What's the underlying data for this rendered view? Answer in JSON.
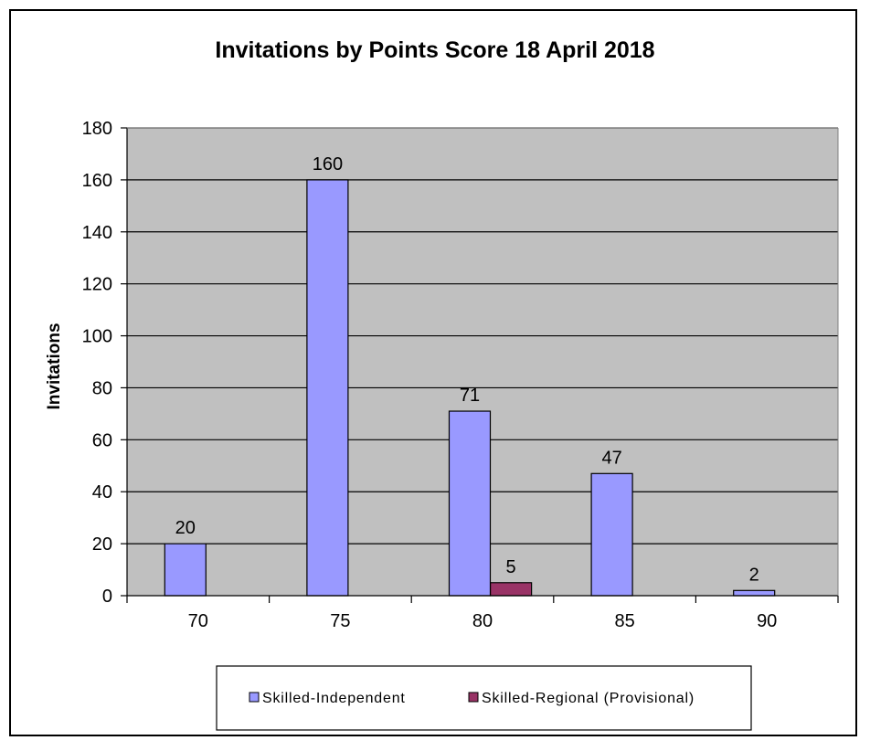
{
  "chart_data": {
    "type": "bar",
    "title": "Invitations by Points Score 18 April 2018",
    "xlabel": "",
    "ylabel": "Invitations",
    "categories": [
      "70",
      "75",
      "80",
      "85",
      "90"
    ],
    "series": [
      {
        "name": "Skilled-Independent",
        "color": "#9999ff",
        "values": [
          20,
          160,
          71,
          47,
          2
        ]
      },
      {
        "name": "Skilled-Regional (Provisional)",
        "color": "#993366",
        "values": [
          0,
          0,
          5,
          0,
          0
        ]
      }
    ],
    "data_labels": [
      [
        "20",
        "160",
        "71",
        "47",
        "2"
      ],
      [
        "",
        "",
        "5",
        "",
        ""
      ]
    ],
    "ylim": [
      0,
      180
    ],
    "yticks": [
      0,
      20,
      40,
      60,
      80,
      100,
      120,
      140,
      160,
      180
    ],
    "grid": true,
    "plot_background": "#c0c0c0",
    "legend_position": "bottom"
  }
}
